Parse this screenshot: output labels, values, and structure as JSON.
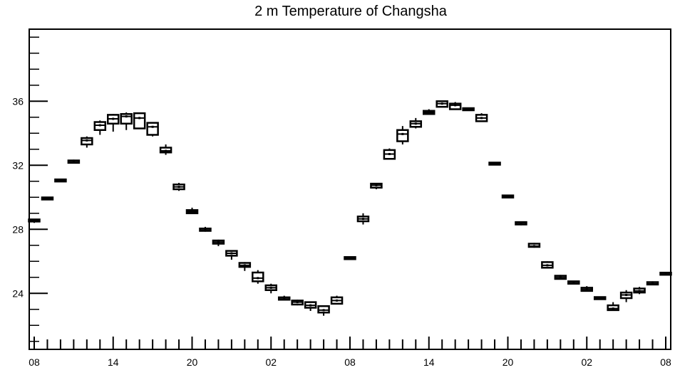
{
  "chart_data": {
    "type": "box",
    "title": "2 m Temperature of Changsha",
    "xlabel": "",
    "ylabel": "",
    "ylim": [
      20.5,
      40.5
    ],
    "xlim": [
      0,
      49
    ],
    "y_ticks": [
      24,
      28,
      32,
      36
    ],
    "y_tick_labels": [
      "24",
      "28",
      "32",
      "36"
    ],
    "x_tick_labels": [
      "08",
      "14",
      "20",
      "02",
      "08",
      "14",
      "20",
      "02",
      "08"
    ],
    "x_tick_hours": [
      0,
      6,
      12,
      18,
      24,
      30,
      36,
      42,
      48
    ],
    "grid": false,
    "legend": "none",
    "series": [
      {
        "hours": [
          0,
          1,
          2,
          3,
          4,
          5,
          6,
          7,
          8,
          9,
          10,
          11,
          12,
          13,
          14,
          15,
          16,
          17,
          18,
          19,
          20,
          21,
          22,
          23,
          24,
          25,
          26,
          27,
          28,
          29,
          30,
          31,
          32,
          33,
          34,
          35,
          36,
          37,
          38,
          39,
          40,
          41,
          42,
          43,
          44,
          45,
          46,
          47,
          48
        ],
        "whisker_low": [
          28.4,
          29.85,
          31.0,
          32.1,
          33.1,
          33.9,
          34.1,
          34.2,
          34.3,
          33.8,
          32.65,
          30.4,
          28.95,
          27.85,
          26.95,
          26.1,
          25.4,
          24.6,
          24.0,
          23.55,
          23.25,
          22.9,
          22.6,
          23.3,
          26.15,
          28.3,
          30.5,
          32.4,
          33.3,
          34.3,
          35.15,
          35.75,
          35.5,
          35.45,
          34.7,
          32.05,
          30.0,
          28.25,
          26.85,
          25.55,
          24.9,
          24.55,
          24.1,
          23.6,
          22.9,
          23.45,
          23.95,
          24.5,
          25.15
        ],
        "q1": [
          28.5,
          29.9,
          31.0,
          32.15,
          33.3,
          34.2,
          34.6,
          34.6,
          34.3,
          33.9,
          32.8,
          30.5,
          29.0,
          27.9,
          27.1,
          26.35,
          25.65,
          24.75,
          24.2,
          23.6,
          23.3,
          23.1,
          22.8,
          23.35,
          26.15,
          28.5,
          30.6,
          32.4,
          33.5,
          34.4,
          35.2,
          35.65,
          35.5,
          35.45,
          34.75,
          32.05,
          30.0,
          28.3,
          26.9,
          25.6,
          24.9,
          24.6,
          24.15,
          23.65,
          22.95,
          23.7,
          24.05,
          24.55,
          25.2
        ],
        "median": [
          28.55,
          29.9,
          31.05,
          32.25,
          33.55,
          34.5,
          34.9,
          35.05,
          34.95,
          34.4,
          32.9,
          30.65,
          29.1,
          27.95,
          27.2,
          26.5,
          25.75,
          24.95,
          24.35,
          23.65,
          23.45,
          23.25,
          22.95,
          23.55,
          26.2,
          28.65,
          30.75,
          32.7,
          33.95,
          34.6,
          35.3,
          35.85,
          35.75,
          35.5,
          34.95,
          32.1,
          30.05,
          28.35,
          26.95,
          25.75,
          25.0,
          24.65,
          24.25,
          23.7,
          23.05,
          23.9,
          24.15,
          24.6,
          25.2
        ],
        "q3": [
          28.6,
          29.95,
          31.1,
          32.3,
          33.7,
          34.7,
          35.15,
          35.2,
          35.25,
          34.65,
          33.1,
          30.8,
          29.2,
          28.05,
          27.3,
          26.65,
          25.9,
          25.3,
          24.5,
          23.75,
          23.55,
          23.45,
          23.2,
          23.75,
          26.25,
          28.8,
          30.85,
          32.95,
          34.2,
          34.75,
          35.4,
          36.0,
          35.85,
          35.55,
          35.15,
          32.15,
          30.1,
          28.45,
          27.1,
          25.95,
          25.1,
          24.75,
          24.35,
          23.75,
          23.25,
          24.05,
          24.3,
          24.7,
          25.25
        ],
        "whisker_high": [
          28.65,
          29.95,
          31.15,
          32.35,
          33.8,
          34.8,
          35.2,
          35.3,
          35.3,
          34.7,
          33.3,
          30.9,
          29.35,
          28.15,
          27.35,
          26.7,
          25.95,
          25.45,
          24.6,
          23.85,
          23.6,
          23.5,
          23.25,
          23.85,
          26.25,
          29.0,
          30.9,
          33.05,
          34.45,
          34.95,
          35.5,
          36.05,
          35.95,
          35.55,
          35.25,
          32.15,
          30.1,
          28.45,
          27.15,
          26.0,
          25.15,
          24.75,
          24.45,
          23.75,
          23.45,
          24.2,
          24.4,
          24.75,
          25.25
        ]
      }
    ]
  }
}
